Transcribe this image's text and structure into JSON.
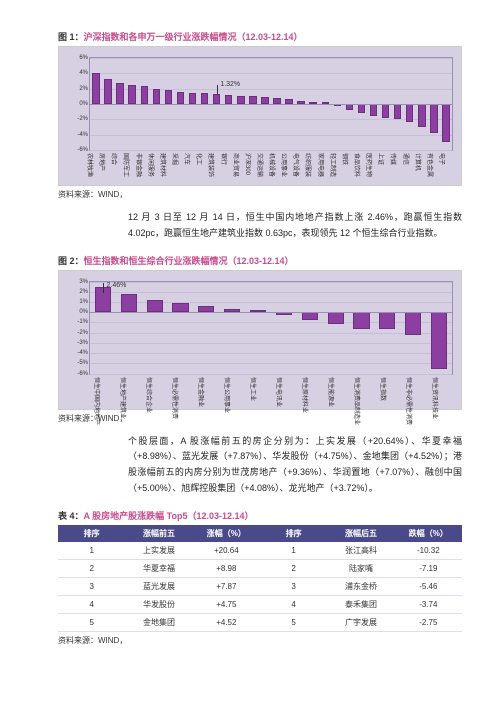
{
  "colors": {
    "accent": "#c94b8a",
    "chart_bg": "#d7d0e3",
    "bar_fill": "#8c3fa0",
    "bar_border": "#6a2f7d",
    "plot_border": "#9a8fb5",
    "grid": "#c7bfd9",
    "table_header_bg": "#4a4a8a",
    "table_header_fg": "#ffffff"
  },
  "fig1": {
    "prefix": "图 1：",
    "title": "沪深指数和各申万一级行业涨跌幅情况（12.03-12.14）",
    "type": "bar",
    "ylim": [
      -6,
      6
    ],
    "yticks": [
      -6,
      -4,
      -2,
      0,
      2,
      4,
      6
    ],
    "ytick_labels": [
      "-6%",
      "-4%",
      "-2%",
      "0%",
      "2%",
      "4%",
      "6%"
    ],
    "categories": [
      "农林牧渔",
      "房地产",
      "综合",
      "国防军工",
      "非银金融",
      "休闲服务",
      "建筑材料",
      "采掘",
      "汽车",
      "化工",
      "建筑装饰",
      "银行",
      "商业贸易",
      "沪深300",
      "交通运输",
      "机械设备",
      "公用事业",
      "电气设备",
      "纺织服装",
      "家用电器",
      "轻工制造",
      "钢铁",
      "食品饮料",
      "医药生物",
      "上证",
      "传媒",
      "通信",
      "计算机",
      "有色金属",
      "电子"
    ],
    "values": [
      4.1,
      3.2,
      2.8,
      2.5,
      2.3,
      2.0,
      1.8,
      1.6,
      1.5,
      1.4,
      1.32,
      1.2,
      1.1,
      1.0,
      0.9,
      0.8,
      0.6,
      0.4,
      0.2,
      0.0,
      -0.3,
      -0.8,
      -1.2,
      -1.5,
      -1.8,
      -2.0,
      -2.4,
      -3.0,
      -3.8,
      -5.0
    ],
    "annotation": {
      "index": 10,
      "label": "1.32%"
    },
    "source": "资料来源：WIND，"
  },
  "para1": "12 月 3 日至 12 月 14 日，恒生中国内地地产指数上涨 2.46%，跑赢恒生指数 4.02pc，跑赢恒生地产建筑业指数 0.63pc，表现领先 12 个恒生综合行业指数。",
  "fig2": {
    "prefix": "图 2：",
    "title": "恒生指数和恒生综合行业涨跌幅情况（12.03-12.14）",
    "type": "bar",
    "ylim": [
      -6,
      3
    ],
    "yticks": [
      -6,
      -5,
      -4,
      -3,
      -2,
      -1,
      0,
      1,
      2,
      3
    ],
    "ytick_labels": [
      "-6%",
      "-5%",
      "-4%",
      "-3%",
      "-2%",
      "-1%",
      "0%",
      "1%",
      "2%",
      "3%"
    ],
    "categories": [
      "恒生中国内地地产",
      "恒生地产建筑业",
      "恒生综合企业",
      "恒生必需性消费",
      "恒生金融业",
      "恒生公用事业",
      "恒生工业",
      "恒生电讯业",
      "恒生原材料业",
      "恒生能源业",
      "恒生消费品制造业",
      "恒生指数",
      "恒生非必需性消费",
      "恒生资讯科技业"
    ],
    "values": [
      2.46,
      1.8,
      1.2,
      0.9,
      0.6,
      0.3,
      0.0,
      -0.3,
      -0.8,
      -1.2,
      -1.6,
      -1.6,
      -2.2,
      -5.6
    ],
    "annotation": {
      "index": 0,
      "label": "2.46%"
    },
    "source": "资料来源：WIND，"
  },
  "para2": "个股层面，A 股涨幅前五的房企分别为：上实发展（+20.64%）、华夏幸福（+8.98%）、蓝光发展（+7.87%）、华发股份（+4.75%）、金地集团（+4.52%）；港股涨幅前五的内房分别为世茂房地产（+9.36%）、华润置地（+7.07%）、融创中国（+5.00%）、旭辉控股集团（+4.08%）、龙光地产（+3.72%）。",
  "table": {
    "prefix": "表 4：",
    "title": "A 股房地产股涨跌幅 Top5（12.03-12.14）",
    "columns": [
      "排序",
      "涨幅前五",
      "涨幅（%）",
      "排序",
      "涨幅后五",
      "跌幅（%）"
    ],
    "rows": [
      [
        "1",
        "上实发展",
        "+20.64",
        "1",
        "张江高科",
        "-10.32"
      ],
      [
        "2",
        "华夏幸福",
        "+8.98",
        "2",
        "陆家嘴",
        "-7.19"
      ],
      [
        "3",
        "蓝光发展",
        "+7.87",
        "3",
        "浦东金桥",
        "-5.46"
      ],
      [
        "4",
        "华发股份",
        "+4.75",
        "4",
        "泰禾集团",
        "-3.74"
      ],
      [
        "5",
        "金地集团",
        "+4.52",
        "5",
        "广宇发展",
        "-2.75"
      ]
    ],
    "source": "资料来源：WIND，"
  }
}
